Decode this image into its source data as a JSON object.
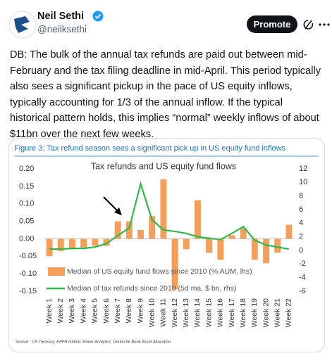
{
  "tweet": {
    "name": "Neil Sethi",
    "handle": "@neilksethi",
    "button": "Promote",
    "text": "DB: The bulk of the annual tax refunds are paid out between mid-February and the tax filing deadline in mid-April. This period typically also sees a significant pickup in the pace of US equity inflows, typically accounting for 1/3 of the annual inflow. If the typical historical pattern holds, this implies “normal” weekly inflows of about $11bn over the next few weeks."
  },
  "chart_data": {
    "type": "bar",
    "figure_title": "Figure 3: Tax refund season sees a significant pick up in US equity fund inflows",
    "title": "Tax refunds and US equity fund flows",
    "source": "Source : US Treasury, EPFR Global, Haver Analytics, Deutsche Bank Asset Allocation",
    "categories": [
      "Week 1",
      "Week 2",
      "Week 3",
      "Week 4",
      "Week 5",
      "Week 6",
      "Week 7",
      "Week 8",
      "Week 9",
      "Week 10",
      "Week 11",
      "Week 12",
      "Week 13",
      "Week 14",
      "Week 15",
      "Week 16",
      "Week 17",
      "Week 18",
      "Week 19",
      "Week 20",
      "Week 21",
      "Week 22"
    ],
    "series": [
      {
        "name": "Median of US equity fund flows since 2010 (% AUM, lhs)",
        "type": "bar",
        "color": "#f5a05a",
        "values": [
          -0.05,
          -0.035,
          -0.03,
          -0.025,
          -0.02,
          -0.02,
          0.05,
          0.05,
          0.025,
          0.065,
          0.17,
          -0.145,
          -0.03,
          0.11,
          -0.04,
          -0.06,
          0.01,
          0.03,
          -0.06,
          -0.07,
          -0.04,
          0.04
        ]
      },
      {
        "name": "Median of tax refunds since 2010 (5d ma, $ bn, rhs)",
        "type": "line",
        "axis": "y2",
        "color": "#2db84c",
        "values": [
          0.2,
          0.2,
          0.3,
          0.3,
          0.5,
          1,
          2.2,
          3.3,
          9.8,
          4.5,
          3,
          2.8,
          2.5,
          2,
          1.8,
          1.6,
          2.5,
          3.5,
          1.5,
          0.8,
          0.5,
          0.2
        ]
      }
    ],
    "ylim": [
      -0.15,
      0.2
    ],
    "yticks": [
      {
        "value": 0.2,
        "label": "0.20"
      },
      0.15,
      {
        "value": 0.1,
        "label": "0.10"
      },
      0.05,
      {
        "value": 0,
        "label": "0.00"
      },
      -0.05,
      {
        "value": -0.1,
        "label": "-0.10"
      },
      -0.15
    ],
    "y2lim": [
      -6,
      12
    ],
    "y2ticks": [
      12,
      10,
      8,
      6,
      4,
      2,
      0,
      -2,
      -4,
      -6
    ]
  }
}
